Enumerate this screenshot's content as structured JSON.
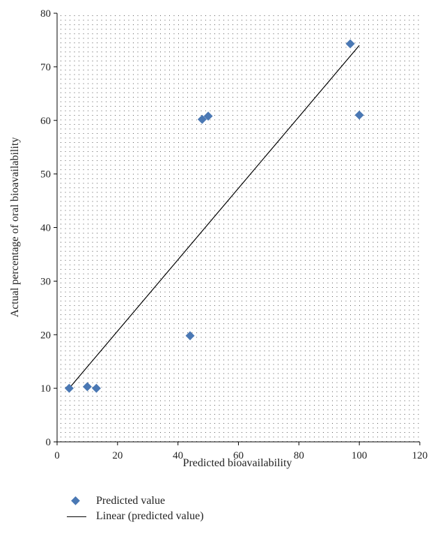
{
  "chart_data": {
    "type": "scatter",
    "xlabel": "Predicted bioavailability",
    "ylabel": "Actual percentage of oral bioavailability",
    "xlim": [
      0,
      120
    ],
    "ylim": [
      0,
      80
    ],
    "xticks": [
      0,
      20,
      40,
      60,
      80,
      100,
      120
    ],
    "yticks": [
      0,
      10,
      20,
      30,
      40,
      50,
      60,
      70,
      80
    ],
    "grid": "dotted",
    "legend_position": "bottom",
    "series": [
      {
        "name": "Predicted value",
        "kind": "scatter",
        "marker": "diamond",
        "color": "#4a78b4",
        "points": [
          {
            "x": 4,
            "y": 10
          },
          {
            "x": 10,
            "y": 10.3
          },
          {
            "x": 13,
            "y": 10
          },
          {
            "x": 44,
            "y": 19.8
          },
          {
            "x": 48,
            "y": 60.2
          },
          {
            "x": 50,
            "y": 60.8
          },
          {
            "x": 97,
            "y": 74.3
          },
          {
            "x": 100,
            "y": 61
          }
        ]
      },
      {
        "name": "Linear (predicted value)",
        "kind": "line",
        "color": "#000000",
        "points": [
          {
            "x": 4,
            "y": 10
          },
          {
            "x": 100,
            "y": 74
          }
        ]
      }
    ]
  }
}
